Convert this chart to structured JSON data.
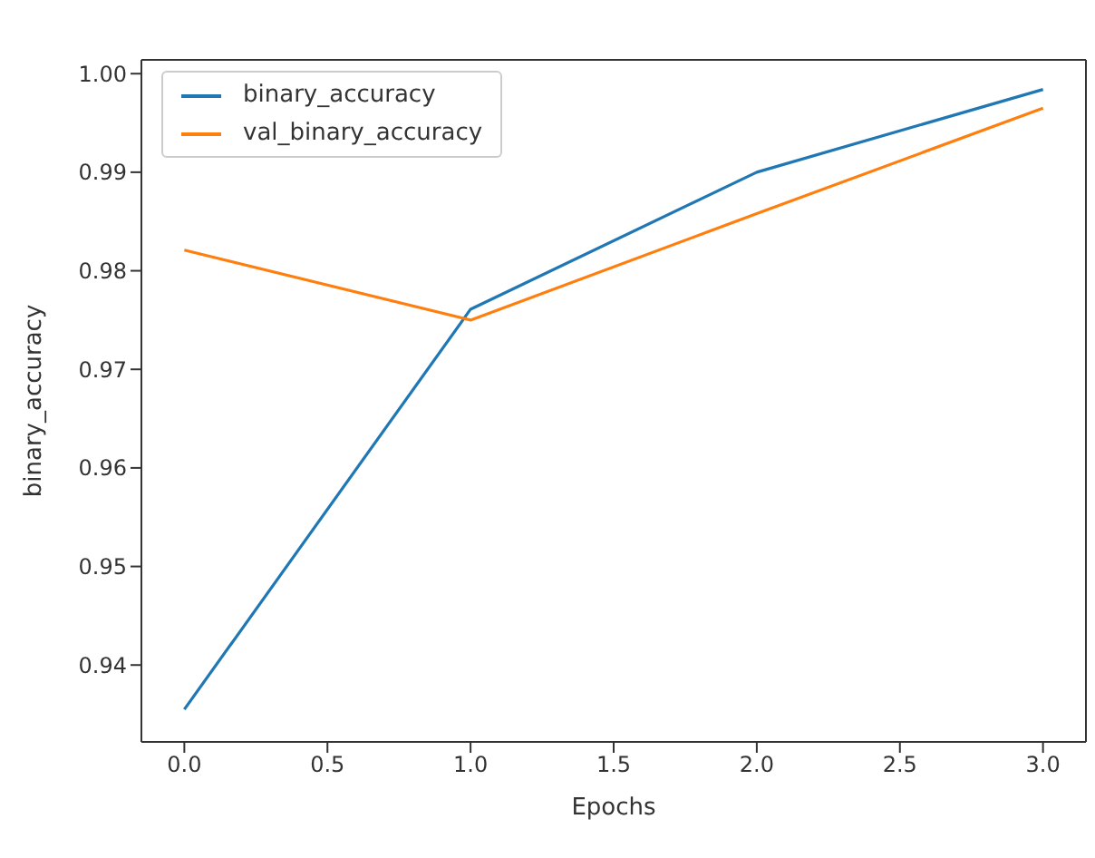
{
  "chart_data": {
    "type": "line",
    "xlabel": "Epochs",
    "ylabel": "binary_accuracy",
    "x": [
      0,
      1,
      2,
      3
    ],
    "series": [
      {
        "name": "binary_accuracy",
        "color": "#1f77b4",
        "values": [
          0.9355,
          0.9761,
          0.99,
          0.9984
        ]
      },
      {
        "name": "val_binary_accuracy",
        "color": "#ff7f0e",
        "values": [
          0.9821,
          0.975,
          0.9858,
          0.9965
        ]
      }
    ],
    "xlim": [
      -0.15,
      3.15
    ],
    "xticks": [
      {
        "value": 0,
        "label": "0.0"
      },
      0.5,
      {
        "value": 1,
        "label": "1.0"
      },
      1.5,
      {
        "value": 2,
        "label": "2.0"
      },
      2.5,
      {
        "value": 3,
        "label": "3.0"
      }
    ],
    "ylim": [
      0.9322,
      1.0014
    ],
    "yticks": [
      0.94,
      0.95,
      0.96,
      0.97,
      0.98,
      0.99,
      {
        "value": 1,
        "label": "1.00"
      }
    ],
    "legend": "top left",
    "grid": false,
    "marker": "none",
    "line_style": "solid"
  }
}
